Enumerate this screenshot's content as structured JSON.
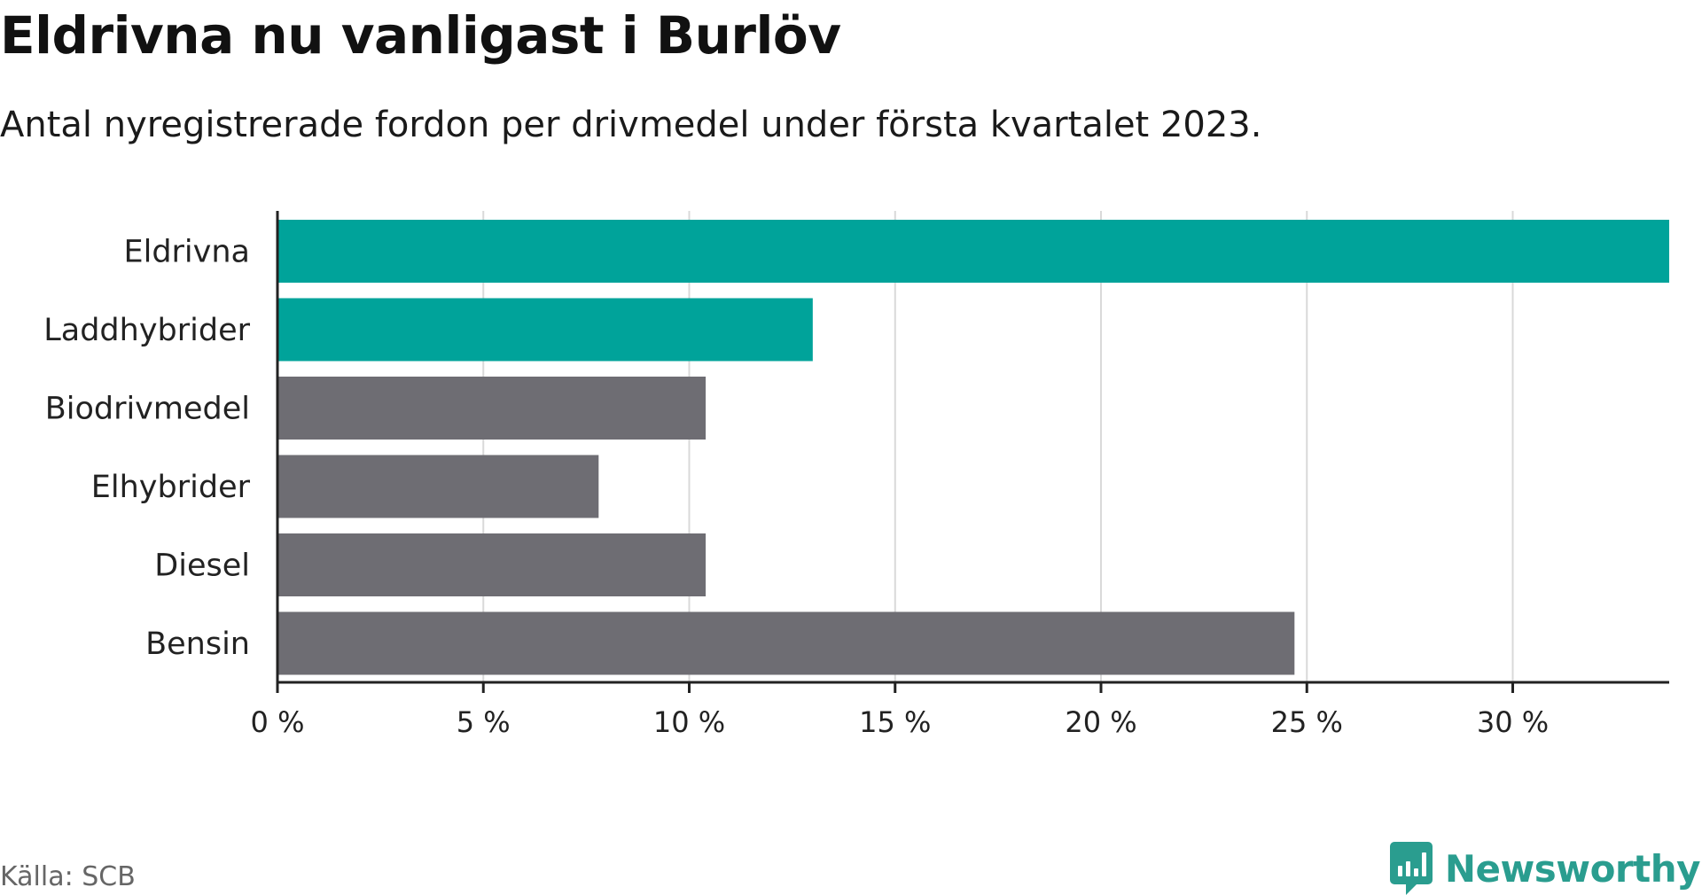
{
  "title": "Eldrivna nu vanligast i Burlöv",
  "subtitle": "Antal nyregistrerade fordon per drivmedel under första kvartalet 2023.",
  "source": "Källa: SCB",
  "brand": "Newsworthy",
  "colors": {
    "highlight": "#00a39a",
    "default": "#6e6d73",
    "grid": "#d9d9d9",
    "axis": "#222222",
    "brand": "#2a9d8f"
  },
  "chart_data": {
    "type": "bar",
    "orientation": "horizontal",
    "categories": [
      "Eldrivna",
      "Laddhybrider",
      "Biodrivmedel",
      "Elhybrider",
      "Diesel",
      "Bensin"
    ],
    "values": [
      33.8,
      13.0,
      10.4,
      7.8,
      10.4,
      24.7
    ],
    "highlighted": [
      true,
      true,
      false,
      false,
      false,
      false
    ],
    "xlim": [
      0,
      33.8
    ],
    "ticks": [
      0,
      5,
      10,
      15,
      20,
      25,
      30
    ],
    "tick_labels": [
      "0 %",
      "5 %",
      "10 %",
      "15 %",
      "20 %",
      "25 %",
      "30 %"
    ],
    "grid": true
  }
}
